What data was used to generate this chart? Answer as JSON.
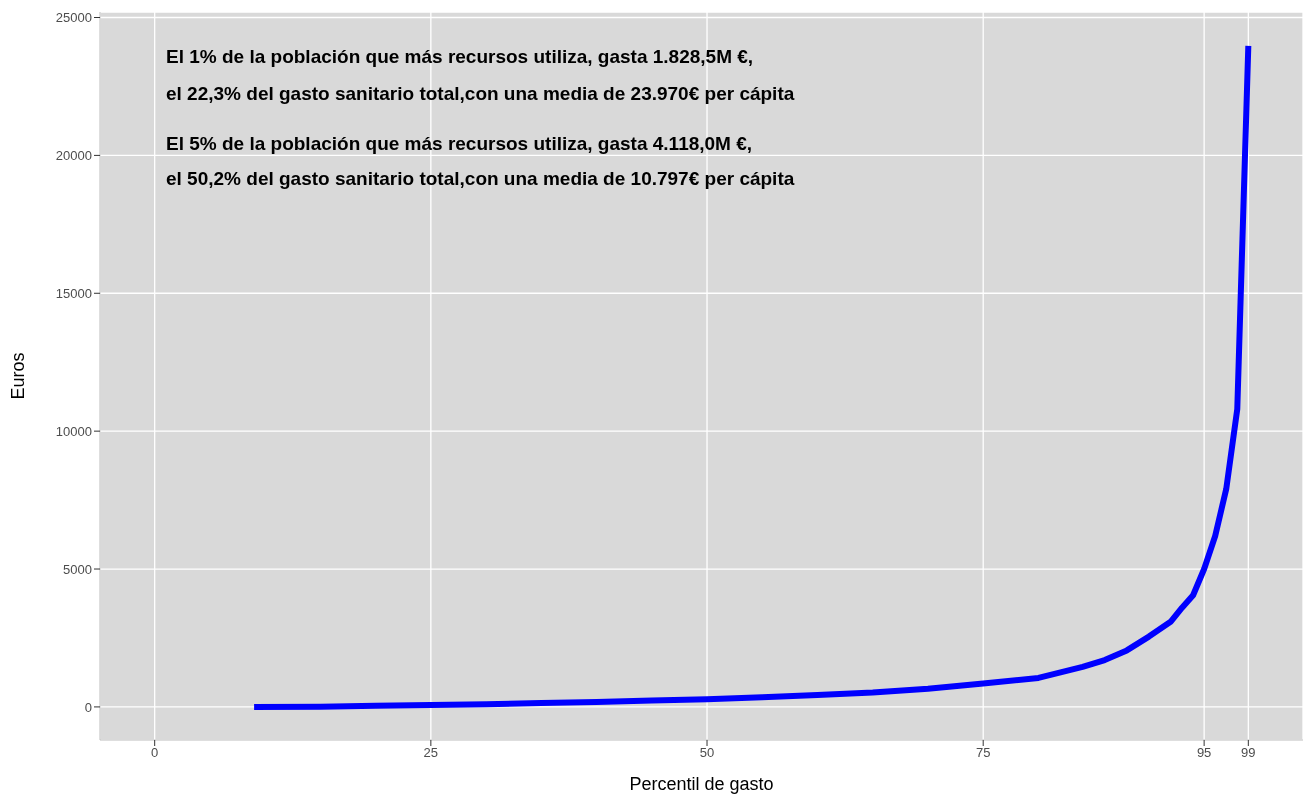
{
  "chart_data": {
    "type": "line",
    "xlabel": "Percentil de gasto",
    "ylabel": "Euros",
    "x": [
      9,
      15,
      20,
      25,
      30,
      35,
      40,
      45,
      50,
      55,
      60,
      65,
      70,
      75,
      80,
      84,
      86,
      88,
      90,
      92,
      93,
      94,
      95,
      96,
      97,
      98,
      99
    ],
    "series": [
      {
        "color": "#0000ff",
        "values": [
          0,
          10,
          40,
          70,
          100,
          140,
          180,
          230,
          280,
          350,
          430,
          520,
          660,
          850,
          1050,
          1450,
          1700,
          2050,
          2550,
          3100,
          3600,
          4050,
          5000,
          6200,
          7900,
          10800,
          23970
        ]
      }
    ],
    "xlim": [
      -4.95,
      103.95
    ],
    "xticks": [
      0,
      25,
      50,
      75,
      95,
      99
    ],
    "ylim": [
      -1200,
      25200
    ],
    "yticks": [
      0,
      5000,
      10000,
      15000,
      20000,
      25000
    ],
    "grid": true,
    "annotations": [
      "El 1% de la población que más recursos utiliza, gasta 1.828,5M €,",
      "el 22,3% del gasto sanitario total,con una media de 23.970€ per cápita",
      "El 5% de la población que más recursos utiliza, gasta 4.118,0M €,",
      "el 50,2% del gasto sanitario total,con una media de 10.797€ per cápita"
    ]
  }
}
